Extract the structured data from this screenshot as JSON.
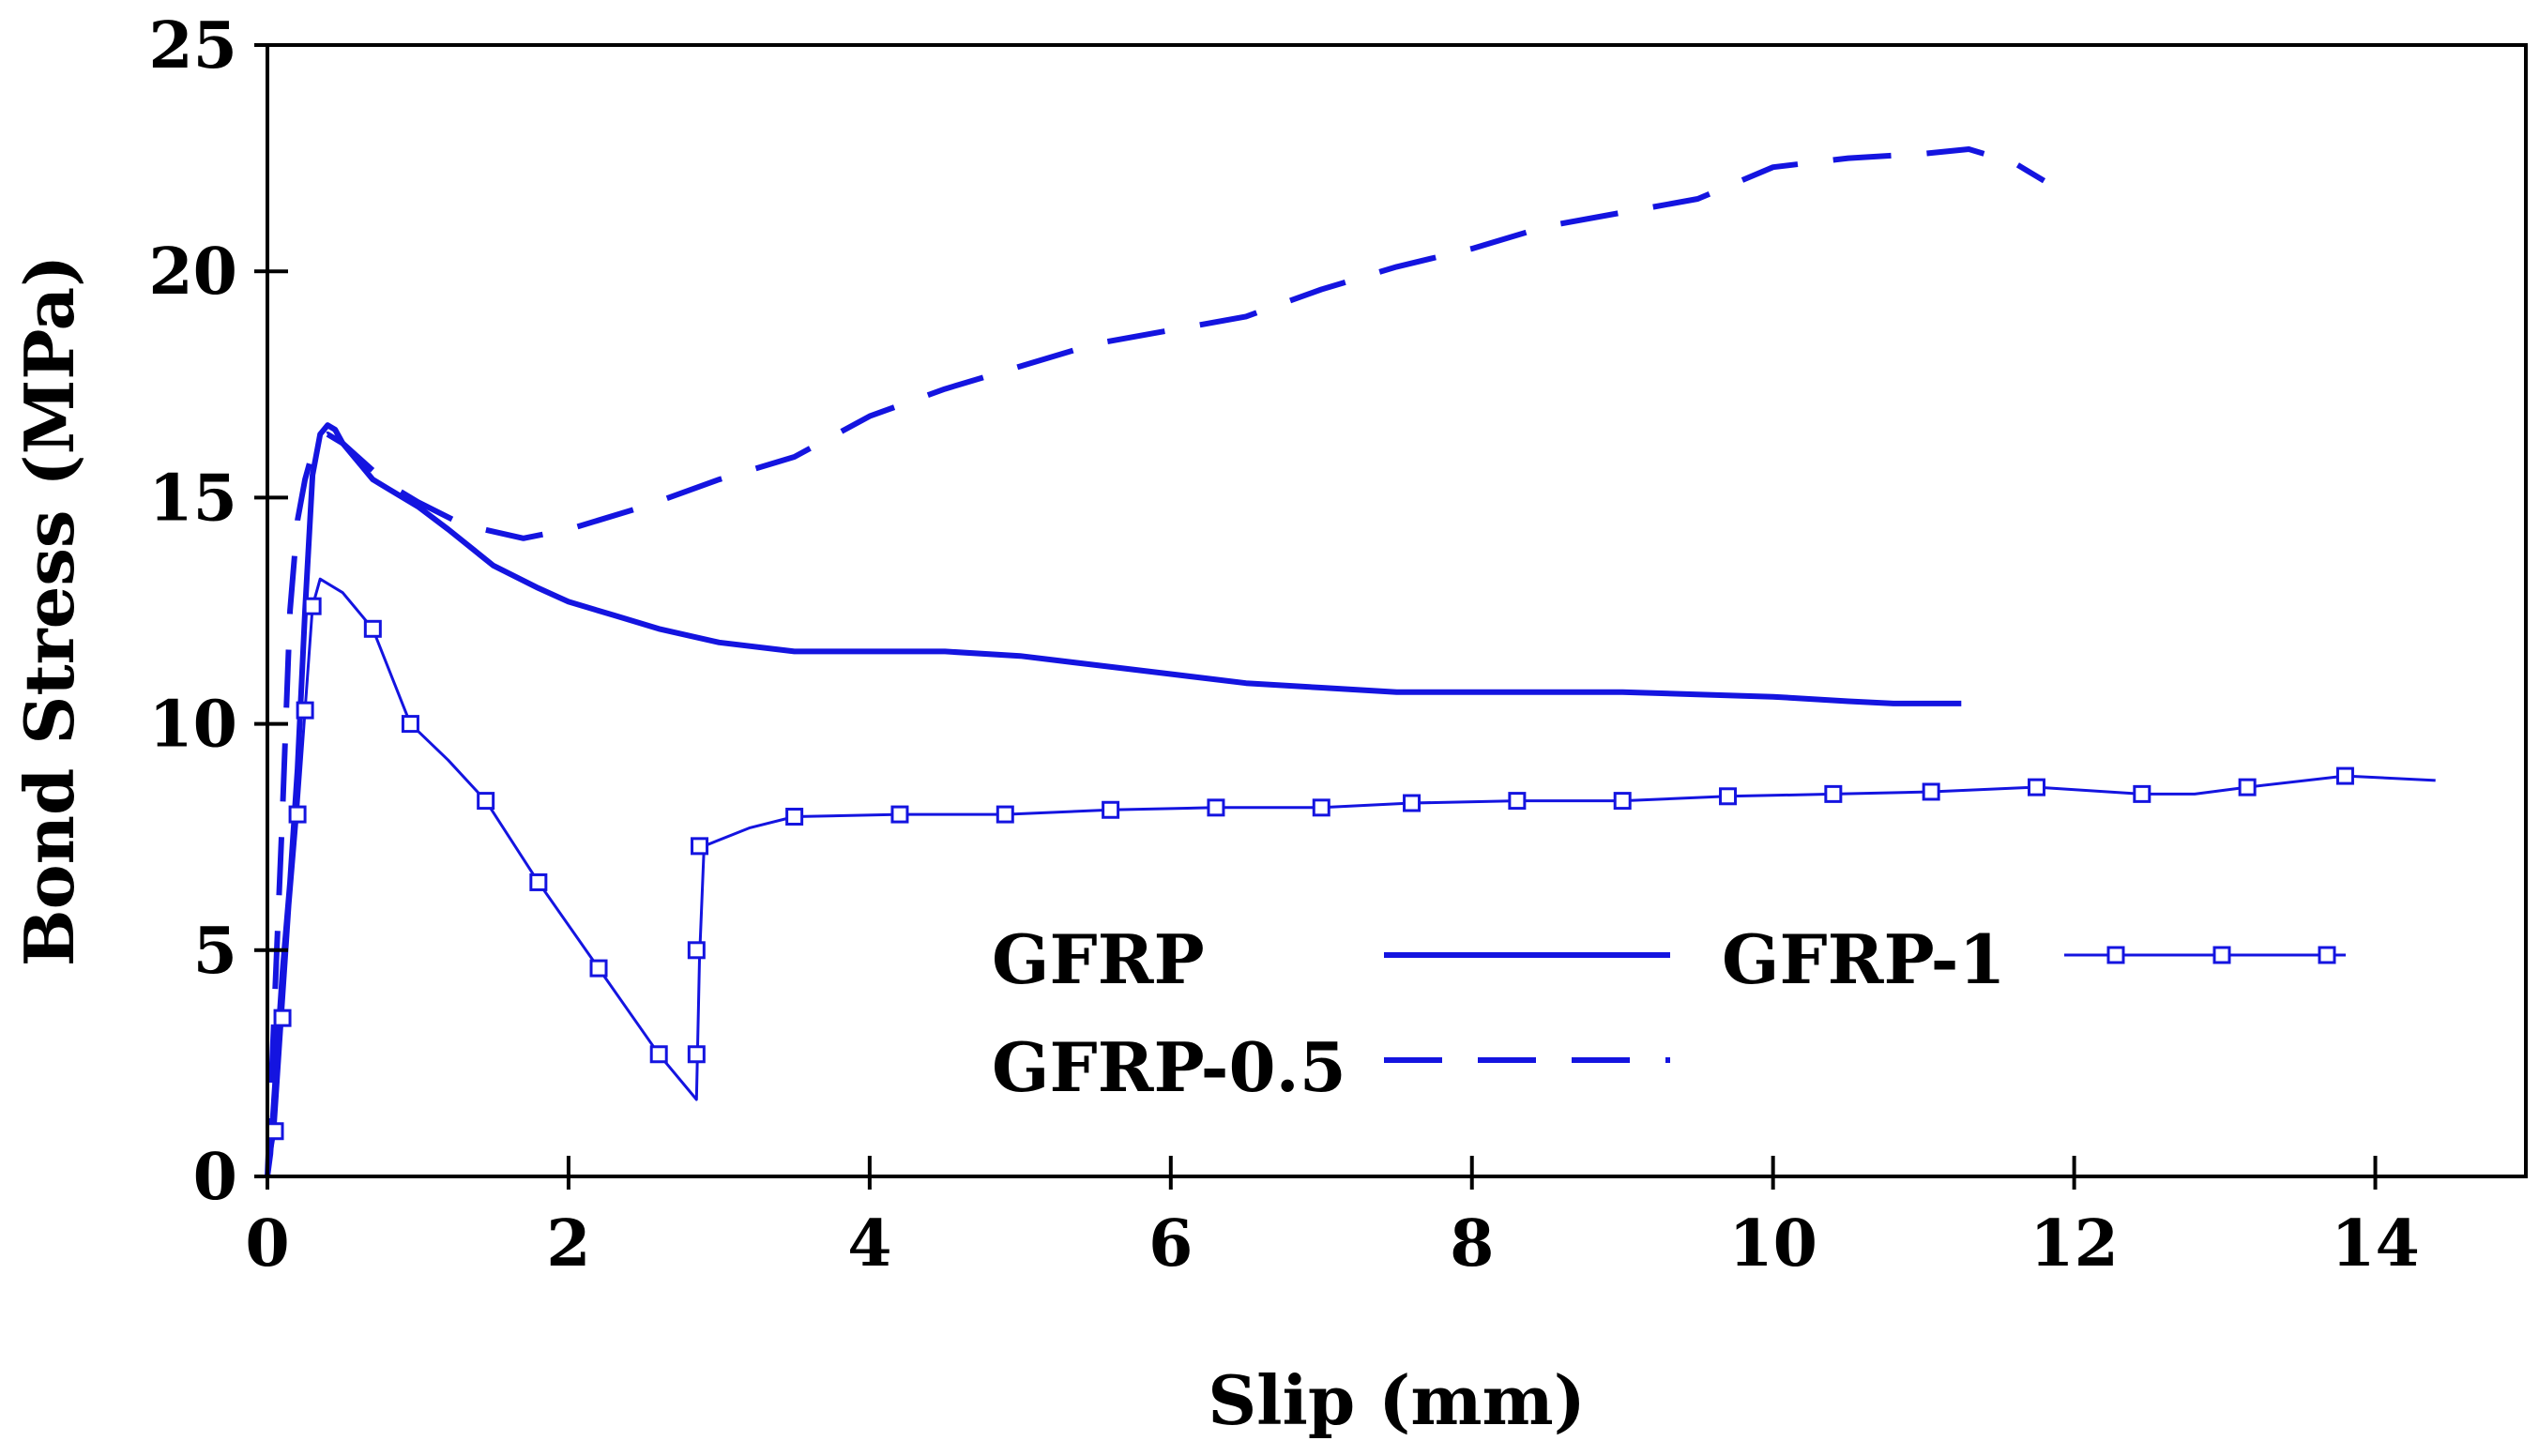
{
  "chart_data": {
    "type": "line",
    "title": "",
    "xlabel": "Slip (mm)",
    "ylabel": "Bond Stress (MPa)",
    "xlim": [
      0,
      15
    ],
    "ylim": [
      0,
      25
    ],
    "xticks": [
      0,
      2,
      4,
      6,
      8,
      10,
      12,
      14
    ],
    "yticks": [
      0,
      5,
      10,
      15,
      20,
      25
    ],
    "grid": false,
    "legend_position": "lower-right",
    "colors": {
      "series": "#1414e0",
      "axis": "#000000"
    },
    "series": [
      {
        "name": "GFRP",
        "style": "solid",
        "marker": "none",
        "x": [
          0,
          0.02,
          0.05,
          0.1,
          0.15,
          0.2,
          0.25,
          0.3,
          0.35,
          0.4,
          0.45,
          0.5,
          0.6,
          0.7,
          0.8,
          1.0,
          1.2,
          1.5,
          1.8,
          2.0,
          2.3,
          2.6,
          3.0,
          3.5,
          4.0,
          4.5,
          5.0,
          5.5,
          6.0,
          6.5,
          7.0,
          7.5,
          8.0,
          8.5,
          9.0,
          9.5,
          10.0,
          10.5,
          10.8,
          11.0,
          11.25
        ],
        "y": [
          0,
          0.5,
          2.0,
          4.5,
          6.5,
          9.0,
          12.5,
          15.5,
          16.4,
          16.6,
          16.5,
          16.2,
          15.8,
          15.4,
          15.2,
          14.8,
          14.3,
          13.5,
          13.0,
          12.7,
          12.4,
          12.1,
          11.8,
          11.6,
          11.6,
          11.6,
          11.5,
          11.3,
          11.1,
          10.9,
          10.8,
          10.7,
          10.7,
          10.7,
          10.7,
          10.65,
          10.6,
          10.5,
          10.45,
          10.45,
          10.45
        ]
      },
      {
        "name": "GFRP-0.5",
        "style": "dashed",
        "marker": "none",
        "x": [
          0,
          0.05,
          0.1,
          0.15,
          0.2,
          0.25,
          0.3,
          0.35,
          0.4,
          0.5,
          0.6,
          0.8,
          1.0,
          1.3,
          1.7,
          2.0,
          2.5,
          3.0,
          3.5,
          4.0,
          4.5,
          5.0,
          5.5,
          6.0,
          6.5,
          7.0,
          7.5,
          8.0,
          8.5,
          9.0,
          9.5,
          10.0,
          10.5,
          11.0,
          11.3,
          11.6,
          11.8
        ],
        "y": [
          0,
          4.0,
          8.0,
          12.5,
          14.5,
          15.4,
          16.0,
          16.3,
          16.4,
          16.2,
          15.9,
          15.3,
          14.9,
          14.4,
          14.1,
          14.3,
          14.8,
          15.4,
          15.9,
          16.8,
          17.4,
          17.9,
          18.4,
          18.7,
          19.0,
          19.6,
          20.1,
          20.5,
          21.0,
          21.3,
          21.6,
          22.3,
          22.5,
          22.6,
          22.7,
          22.4,
          22.0
        ]
      },
      {
        "name": "GFRP-1",
        "style": "solid-thin",
        "marker": "square",
        "x": [
          0,
          0.05,
          0.1,
          0.15,
          0.2,
          0.25,
          0.3,
          0.35,
          0.5,
          0.7,
          0.95,
          1.2,
          1.45,
          1.8,
          2.2,
          2.6,
          2.85,
          2.87,
          2.9,
          3.2,
          3.5,
          4.2,
          4.9,
          5.6,
          6.3,
          7.0,
          7.6,
          8.3,
          9.0,
          9.7,
          10.4,
          11.05,
          11.75,
          12.45,
          12.8,
          13.15,
          13.8,
          14.4
        ],
        "y": [
          0,
          1.0,
          3.5,
          6.0,
          8.0,
          10.3,
          12.6,
          13.2,
          12.9,
          12.1,
          10.0,
          9.2,
          8.3,
          6.5,
          4.6,
          2.7,
          1.7,
          4.8,
          7.3,
          7.7,
          7.95,
          8.0,
          8.0,
          8.1,
          8.15,
          8.15,
          8.25,
          8.3,
          8.3,
          8.4,
          8.45,
          8.5,
          8.6,
          8.45,
          8.45,
          8.6,
          8.85,
          8.75
        ],
        "marker_points": {
          "x": [
            0.05,
            0.1,
            0.2,
            0.25,
            0.3,
            0.7,
            0.95,
            1.45,
            1.8,
            2.2,
            2.6,
            2.85,
            2.85,
            2.87,
            3.5,
            4.2,
            4.9,
            5.6,
            6.3,
            7.0,
            7.6,
            8.3,
            9.0,
            9.7,
            10.4,
            11.05,
            11.75,
            12.45,
            13.15,
            13.8
          ],
          "y": [
            1.0,
            3.5,
            8.0,
            10.3,
            12.6,
            12.1,
            10.0,
            8.3,
            6.5,
            4.6,
            2.7,
            2.7,
            5.0,
            7.3,
            7.95,
            8.0,
            8.0,
            8.1,
            8.15,
            8.15,
            8.25,
            8.3,
            8.3,
            8.4,
            8.45,
            8.5,
            8.6,
            8.45,
            8.6,
            8.85
          ]
        }
      }
    ],
    "legend": [
      {
        "label": "GFRP",
        "series": "GFRP"
      },
      {
        "label": "GFRP-0.5",
        "series": "GFRP-0.5"
      },
      {
        "label": "GFRP-1",
        "series": "GFRP-1"
      }
    ]
  }
}
